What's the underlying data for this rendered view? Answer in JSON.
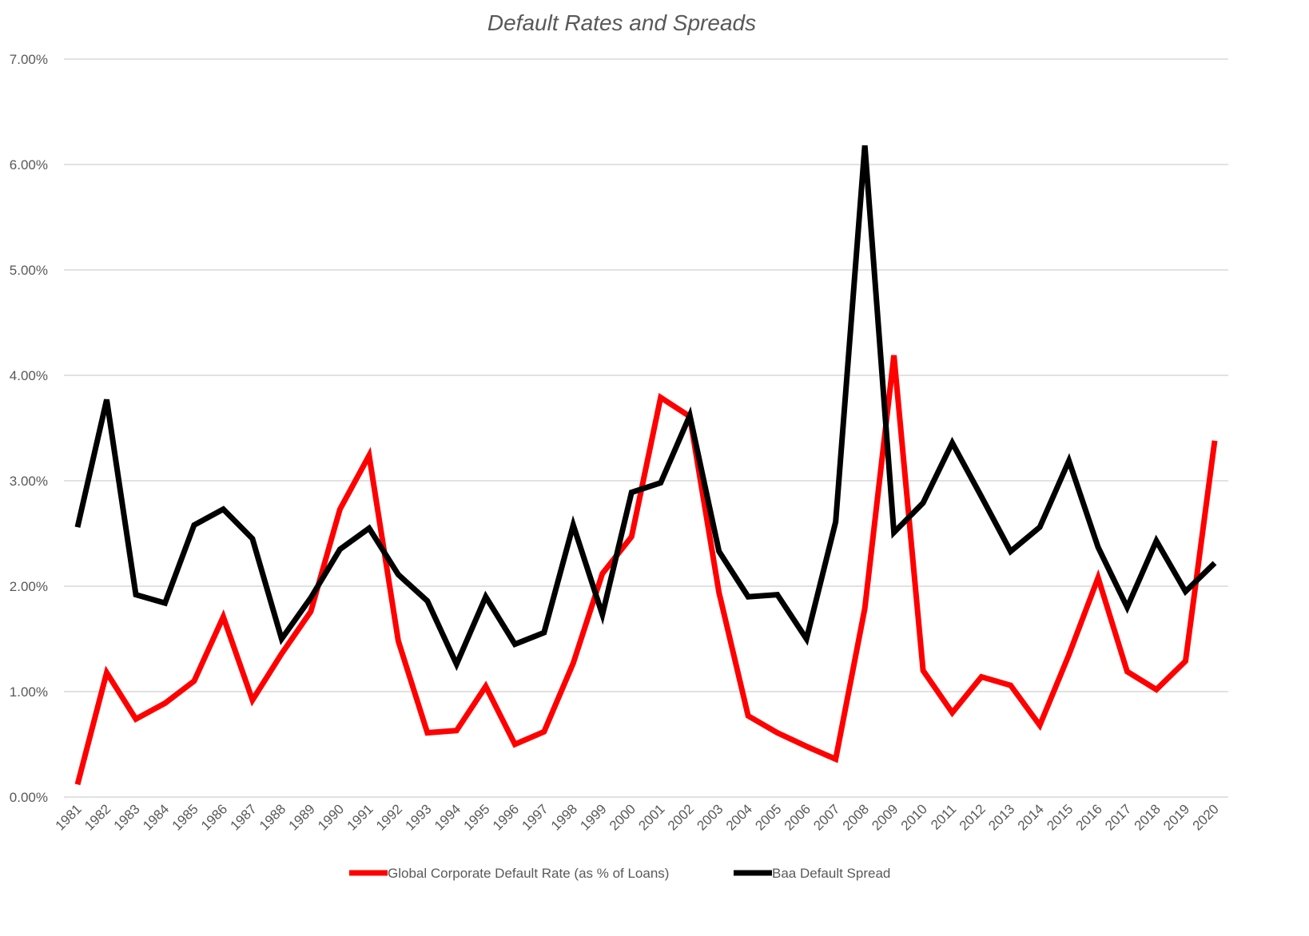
{
  "chart_data": {
    "type": "line",
    "title": "Default Rates and Spreads",
    "xlabel": "",
    "ylabel": "",
    "ylim": [
      0,
      7
    ],
    "yticks": [
      "0.00%",
      "1.00%",
      "2.00%",
      "3.00%",
      "4.00%",
      "5.00%",
      "6.00%",
      "7.00%"
    ],
    "grid": true,
    "legend_position": "bottom",
    "x": [
      "1981",
      "1982",
      "1983",
      "1984",
      "1985",
      "1986",
      "1987",
      "1988",
      "1989",
      "1990",
      "1991",
      "1992",
      "1993",
      "1994",
      "1995",
      "1996",
      "1997",
      "1998",
      "1999",
      "2000",
      "2001",
      "2002",
      "2003",
      "2004",
      "2005",
      "2006",
      "2007",
      "2008",
      "2009",
      "2010",
      "2011",
      "2012",
      "2013",
      "2014",
      "2015",
      "2016",
      "2017",
      "2018",
      "2019",
      "2020"
    ],
    "series": [
      {
        "name": "Global Corporate Default Rate (as % of Loans)",
        "color": "#ff0000",
        "values": [
          0.12,
          1.18,
          0.74,
          0.89,
          1.1,
          1.71,
          0.92,
          1.36,
          1.76,
          2.73,
          3.24,
          1.48,
          0.61,
          0.63,
          1.05,
          0.5,
          0.62,
          1.27,
          2.12,
          2.47,
          3.79,
          3.61,
          1.94,
          0.77,
          0.61,
          0.48,
          0.36,
          1.79,
          4.19,
          1.2,
          0.8,
          1.14,
          1.06,
          0.68,
          1.35,
          2.08,
          1.19,
          1.02,
          1.29,
          3.38
        ]
      },
      {
        "name": "Baa Default Spread",
        "color": "#000000",
        "values": [
          2.56,
          3.77,
          1.92,
          1.84,
          2.58,
          2.73,
          2.45,
          1.5,
          1.89,
          2.35,
          2.55,
          2.11,
          1.86,
          1.26,
          1.9,
          1.45,
          1.56,
          2.58,
          1.73,
          2.89,
          2.98,
          3.62,
          2.33,
          1.9,
          1.92,
          1.5,
          2.61,
          6.18,
          2.51,
          2.79,
          3.36,
          2.85,
          2.33,
          2.56,
          3.19,
          2.37,
          1.8,
          2.43,
          1.95,
          2.22
        ]
      }
    ]
  }
}
